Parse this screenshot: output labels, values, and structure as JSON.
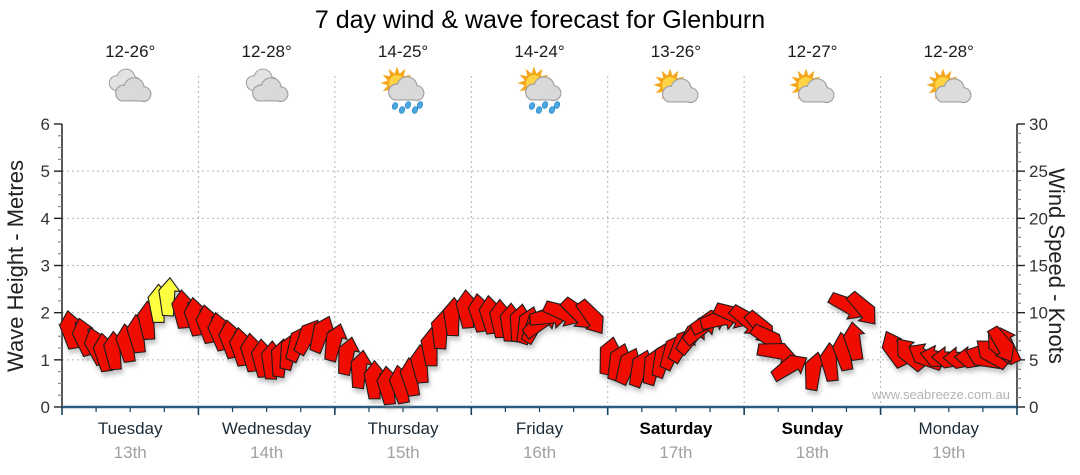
{
  "page": {
    "title": "7 day wind & wave forecast for Glenburn",
    "watermark": "www.seabreeze.com.au"
  },
  "chart_data": {
    "type": "wind-arrow-series",
    "title": "7 day wind & wave forecast for Glenburn",
    "left_axis": {
      "label": "Wave Height - Metres",
      "min": 0,
      "max": 6,
      "tick_step": 1,
      "minor_step": 0.25
    },
    "right_axis": {
      "label": "Wind Speed - Knots",
      "min": 0,
      "max": 30,
      "tick_step": 5,
      "minor_step": 1
    },
    "x_axis": {
      "span_hours": 168,
      "days": [
        {
          "name": "Tuesday",
          "date": "13th",
          "temp": "12-26°",
          "icon": "clouds",
          "bold": false,
          "kt": [
            10.2,
            9.4,
            8.4,
            7.8,
            8.0,
            8.8,
            9.8,
            11.2,
            13.0,
            13.7,
            12.4,
            11.6
          ],
          "dir": [
            -10,
            -15,
            -18,
            -8,
            -4,
            -8,
            -6,
            -3,
            0,
            3,
            -4,
            -8
          ],
          "strong": [
            8,
            9
          ]
        },
        {
          "name": "Wednesday",
          "date": "14th",
          "temp": "12-28°",
          "icon": "clouds",
          "bold": false,
          "kt": [
            10.8,
            10.0,
            9.2,
            8.4,
            7.8,
            7.2,
            7.0,
            7.2,
            7.9,
            8.6,
            9.2,
            9.6
          ],
          "dir": [
            -10,
            -12,
            -10,
            -8,
            -6,
            -4,
            2,
            8,
            15,
            24,
            30,
            22
          ],
          "strong": []
        },
        {
          "name": "Thursday",
          "date": "15th",
          "temp": "14-25°",
          "icon": "sun-rain",
          "bold": false,
          "kt": [
            8.8,
            7.4,
            6.0,
            4.9,
            4.3,
            4.4,
            5.2,
            6.6,
            8.4,
            10.2,
            11.6,
            12.4
          ],
          "dir": [
            16,
            12,
            8,
            0,
            -6,
            -10,
            -8,
            -4,
            0,
            4,
            2,
            -4
          ],
          "strong": []
        },
        {
          "name": "Friday",
          "date": "16th",
          "temp": "14-24°",
          "icon": "sun-rain",
          "bold": false,
          "kt": [
            12.0,
            11.8,
            11.4,
            11.0,
            10.9,
            10.6,
            10.4,
            10.0,
            9.6,
            9.0,
            8.4,
            7.8
          ],
          "dir": [
            -8,
            -6,
            -2,
            2,
            8,
            18,
            30,
            55,
            85,
            115,
            135,
            145
          ],
          "strong": []
        },
        {
          "name": "Saturday",
          "date": "17th",
          "temp": "13-26°",
          "icon": "sun-cloud",
          "bold": true,
          "kt": [
            7.4,
            6.7,
            6.2,
            6.0,
            6.3,
            7.0,
            7.7,
            8.3,
            8.9,
            9.4,
            9.8,
            9.6
          ],
          "dir": [
            12,
            18,
            24,
            20,
            16,
            20,
            26,
            32,
            40,
            52,
            66,
            78
          ],
          "strong": []
        },
        {
          "name": "Sunday",
          "date": "18th",
          "temp": "12-27°",
          "icon": "sun-cloud",
          "bold": true,
          "kt": [
            8.8,
            7.8,
            6.8,
            6.0,
            5.4,
            5.2,
            5.8,
            6.8,
            7.9,
            9.0,
            9.6,
            8.8
          ],
          "dir": [
            115,
            130,
            140,
            125,
            100,
            60,
            10,
            -5,
            -10,
            -8,
            120,
            140
          ],
          "strong": []
        },
        {
          "name": "Monday",
          "date": "19th",
          "temp": "12-28°",
          "icon": "sun-cloud",
          "bold": false,
          "kt": [
            8.0,
            7.2,
            6.4,
            5.7,
            5.3,
            5.2,
            5.3,
            6.0,
            7.0,
            8.0,
            8.4,
            4.8
          ],
          "dir": [
            -25,
            -40,
            -60,
            -78,
            -88,
            -90,
            -88,
            -70,
            -50,
            -40,
            -25,
            150
          ],
          "strong": []
        }
      ]
    },
    "series_unit": "knots",
    "sample_interval_hours": 2,
    "arrow_colors": {
      "normal": "#ee0f05",
      "strong": "#ffff42",
      "outline": "#1a1a1a"
    },
    "style_colors": {
      "grid": "#b5b5b5",
      "axis": "#222222",
      "time_axis": "#2a5b80",
      "tick_label": "#333333",
      "date_label": "#a0a0a0"
    }
  }
}
